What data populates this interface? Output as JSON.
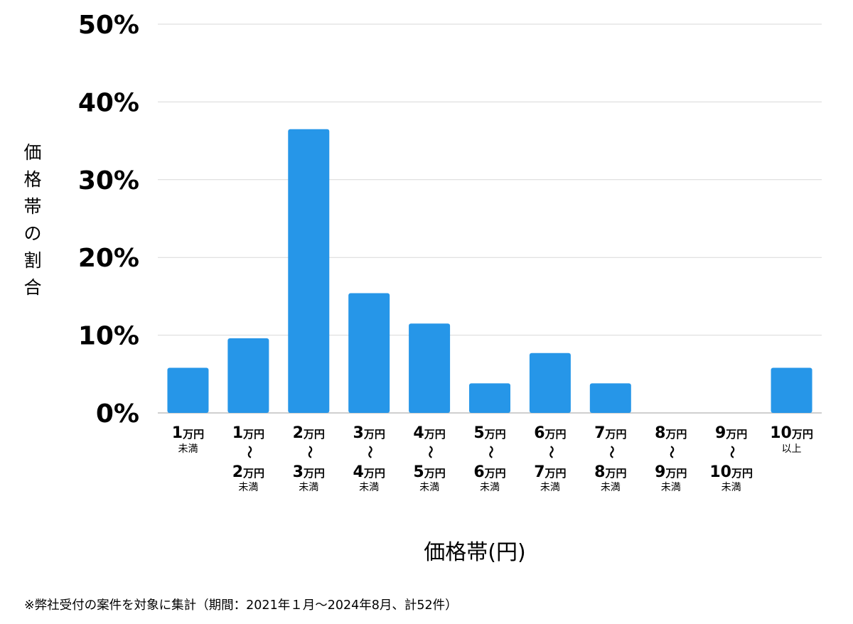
{
  "chart_data": {
    "type": "bar",
    "categories": [
      {
        "top": "1",
        "top_unit": "万円",
        "note": "未満"
      },
      {
        "top": "1",
        "top_unit": "万円",
        "sep": "～",
        "bottom": "2",
        "bottom_unit": "万円",
        "note": "未満"
      },
      {
        "top": "2",
        "top_unit": "万円",
        "sep": "～",
        "bottom": "3",
        "bottom_unit": "万円",
        "note": "未満"
      },
      {
        "top": "3",
        "top_unit": "万円",
        "sep": "～",
        "bottom": "4",
        "bottom_unit": "万円",
        "note": "未満"
      },
      {
        "top": "4",
        "top_unit": "万円",
        "sep": "～",
        "bottom": "5",
        "bottom_unit": "万円",
        "note": "未満"
      },
      {
        "top": "5",
        "top_unit": "万円",
        "sep": "～",
        "bottom": "6",
        "bottom_unit": "万円",
        "note": "未満"
      },
      {
        "top": "6",
        "top_unit": "万円",
        "sep": "～",
        "bottom": "7",
        "bottom_unit": "万円",
        "note": "未満"
      },
      {
        "top": "7",
        "top_unit": "万円",
        "sep": "～",
        "bottom": "8",
        "bottom_unit": "万円",
        "note": "未満"
      },
      {
        "top": "8",
        "top_unit": "万円",
        "sep": "～",
        "bottom": "9",
        "bottom_unit": "万円",
        "note": "未満"
      },
      {
        "top": "9",
        "top_unit": "万円",
        "sep": "～",
        "bottom": "10",
        "bottom_unit": "万円",
        "note": "未満"
      },
      {
        "top": "10",
        "top_unit": "万円",
        "note": "以上"
      }
    ],
    "values": [
      5.8,
      9.6,
      36.5,
      15.4,
      11.5,
      3.8,
      7.7,
      3.8,
      0,
      0,
      5.8
    ],
    "ylim": [
      0,
      50
    ],
    "yticks": [
      0,
      10,
      20,
      30,
      40,
      50
    ],
    "ytick_labels": [
      "0%",
      "10%",
      "20%",
      "30%",
      "40%",
      "50%"
    ],
    "ylabel": "価格帯の割合",
    "xlabel": "価格帯(円)",
    "grid": true,
    "bar_color": "#2696e8",
    "grid_color": "#d9d9d9",
    "axis_color": "#bfbfbf"
  },
  "footnote": "※弊社受付の案件を対象に集計（期間：2021年１月～2024年8月、計52件）"
}
